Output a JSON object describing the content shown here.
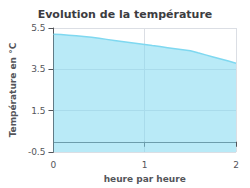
{
  "chart_data": {
    "type": "area",
    "title": "Evolution de la température",
    "xlabel": "heure par heure",
    "ylabel": "Température en °C",
    "x": [
      0,
      0.083,
      0.167,
      0.25,
      0.333,
      0.417,
      0.5,
      0.583,
      0.667,
      0.75,
      0.833,
      0.917,
      1.0,
      1.083,
      1.167,
      1.25,
      1.333,
      1.417,
      1.5,
      1.583,
      1.667,
      1.75,
      1.833,
      1.917,
      2.0
    ],
    "values": [
      5.2,
      5.18,
      5.15,
      5.12,
      5.09,
      5.05,
      5.0,
      4.95,
      4.9,
      4.85,
      4.8,
      4.75,
      4.7,
      4.65,
      4.6,
      4.55,
      4.5,
      4.45,
      4.4,
      4.3,
      4.2,
      4.1,
      4.0,
      3.9,
      3.8
    ],
    "color": "#7fd8f0",
    "xlim": [
      0,
      2
    ],
    "xticks": [
      0,
      1,
      2
    ],
    "ylim": [
      -0.5,
      5.5
    ],
    "yticks": [
      -0.5,
      1.5,
      3.5,
      5.5
    ],
    "grid": true
  }
}
